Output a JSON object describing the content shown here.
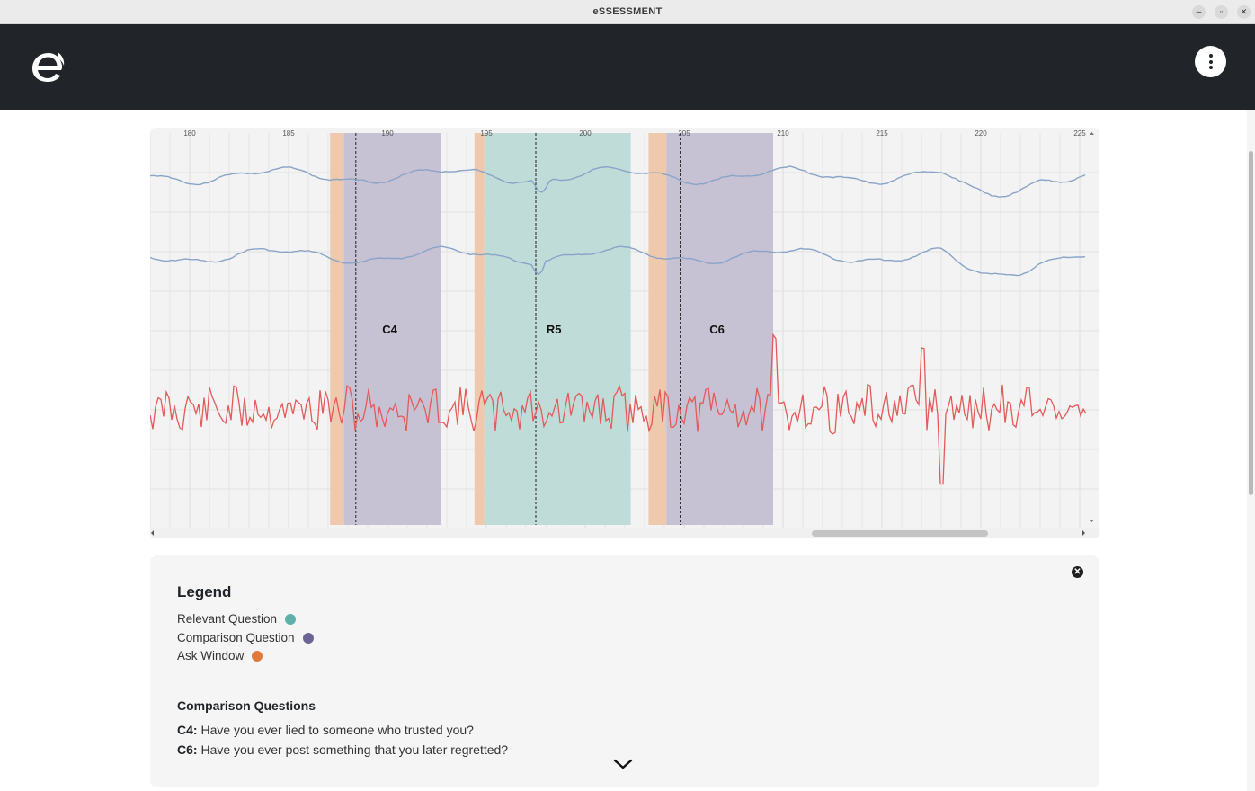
{
  "window": {
    "title": "eSSESSMENT",
    "minimize": "–",
    "maximize": "▫",
    "close": "✕"
  },
  "header": {
    "logo_icon": "essessment-logo-icon",
    "menu_icon": "vertical-ellipsis-icon"
  },
  "chart_data": {
    "type": "line",
    "x_ticks": [
      "180",
      "185",
      "190",
      "195",
      "200",
      "205",
      "210",
      "215",
      "220",
      "225"
    ],
    "xlim": [
      178,
      226
    ],
    "title": "",
    "xlabel": "",
    "ylabel": "",
    "grid": true,
    "question_regions": [
      {
        "label": "C4",
        "kind": "comparison",
        "ask_window": [
          187.1,
          187.8
        ],
        "region": [
          187.8,
          192.7
        ],
        "marker": 188.4
      },
      {
        "label": "R5",
        "kind": "relevant",
        "ask_window": [
          194.4,
          194.9
        ],
        "region": [
          194.9,
          202.3
        ],
        "marker": 197.5
      },
      {
        "label": "C6",
        "kind": "comparison",
        "ask_window": [
          203.2,
          204.1
        ],
        "region": [
          204.1,
          209.5
        ],
        "marker": 204.8
      }
    ],
    "series": [
      {
        "color": "#8aa4c8",
        "baseline": 0.12
      },
      {
        "color": "#8aa4c8",
        "baseline": 0.32
      },
      {
        "color": "#e35a5a",
        "baseline": 0.72
      }
    ]
  },
  "colors": {
    "relevant": "#5fb0aa",
    "comparison": "#6c6494",
    "ask_window": "#df7a3a",
    "relevant_region": "#bfdcd9",
    "comparison_region": "#c7c2d3",
    "ask_region": "#eec9ae"
  },
  "legend": {
    "title": "Legend",
    "items": [
      {
        "label": "Relevant Question",
        "color": "#5fb0aa"
      },
      {
        "label": "Comparison Question",
        "color": "#6c6494"
      },
      {
        "label": "Ask Window",
        "color": "#df7a3a"
      }
    ],
    "close_icon": "close-circle-icon",
    "comparison_title": "Comparison Questions",
    "questions": [
      {
        "id": "C4:",
        "text": " Have you ever lied to someone who trusted you?"
      },
      {
        "id": "C6:",
        "text": " Have you ever post something that you later regretted?"
      }
    ],
    "expand_icon": "chevron-down-icon"
  }
}
